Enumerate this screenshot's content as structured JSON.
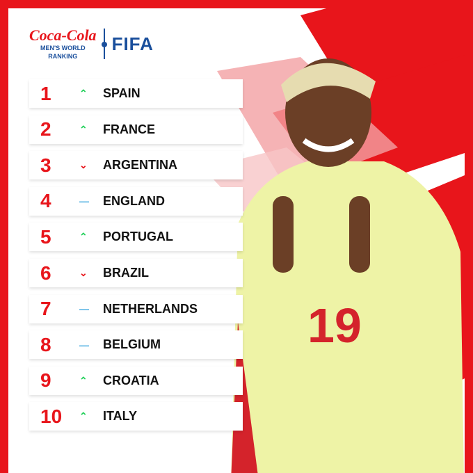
{
  "brand": {
    "sponsor": "Coca-Cola",
    "subtitle_line1": "MEN'S WORLD",
    "subtitle_line2": "RANKING",
    "org": "FIFA"
  },
  "colors": {
    "accent": "#e8151b",
    "brand_blue": "#1a4f9c",
    "up": "#22d05a",
    "down": "#e8151b",
    "same": "#3fa9e0"
  },
  "rankings": [
    {
      "rank": "1",
      "trend": "up",
      "icon": "chevron-up-icon",
      "team": "SPAIN"
    },
    {
      "rank": "2",
      "trend": "up",
      "icon": "chevron-up-icon",
      "team": "FRANCE"
    },
    {
      "rank": "3",
      "trend": "down",
      "icon": "chevron-down-icon",
      "team": "ARGENTINA"
    },
    {
      "rank": "4",
      "trend": "same",
      "icon": "dash-icon",
      "team": "ENGLAND"
    },
    {
      "rank": "5",
      "trend": "up",
      "icon": "chevron-up-icon",
      "team": "PORTUGAL"
    },
    {
      "rank": "6",
      "trend": "down",
      "icon": "chevron-down-icon",
      "team": "BRAZIL"
    },
    {
      "rank": "7",
      "trend": "same",
      "icon": "dash-icon",
      "team": "NETHERLANDS"
    },
    {
      "rank": "8",
      "trend": "same",
      "icon": "dash-icon",
      "team": "BELGIUM"
    },
    {
      "rank": "9",
      "trend": "up",
      "icon": "chevron-up-icon",
      "team": "CROATIA"
    },
    {
      "rank": "10",
      "trend": "up",
      "icon": "chevron-up-icon",
      "team": "ITALY"
    }
  ],
  "player": {
    "shirt_number": "19"
  }
}
